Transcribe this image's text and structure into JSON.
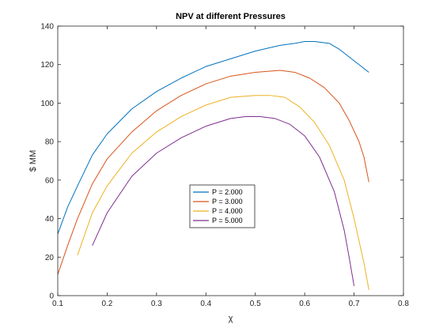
{
  "chart_data": {
    "type": "line",
    "title": "NPV at different Pressures",
    "xlabel": "χ",
    "ylabel": "$ MM",
    "xlim": [
      0.1,
      0.8
    ],
    "ylim": [
      0,
      140
    ],
    "xticks": [
      0.1,
      0.2,
      0.3,
      0.4,
      0.5,
      0.6,
      0.7,
      0.8
    ],
    "xtick_labels": [
      "0.1",
      "0.2",
      "0.3",
      "0.4",
      "0.5",
      "0.6",
      "0.7",
      "0.8"
    ],
    "yticks": [
      0,
      20,
      40,
      60,
      80,
      100,
      120,
      140
    ],
    "ytick_labels": [
      "0",
      "20",
      "40",
      "60",
      "80",
      "100",
      "120",
      "140"
    ],
    "grid": false,
    "legend_position": "center",
    "series": [
      {
        "name": "P = 2.000",
        "color": "#0072BD",
        "x": [
          0.1,
          0.12,
          0.14,
          0.17,
          0.2,
          0.25,
          0.3,
          0.35,
          0.4,
          0.45,
          0.5,
          0.55,
          0.58,
          0.6,
          0.62,
          0.65,
          0.67,
          0.69,
          0.71,
          0.73
        ],
        "y": [
          32,
          46,
          57,
          73,
          84,
          97,
          106,
          113,
          119,
          123,
          127,
          130,
          131,
          132,
          132,
          131,
          128,
          124,
          120,
          116
        ]
      },
      {
        "name": "P = 3.000",
        "color": "#D95319",
        "x": [
          0.1,
          0.12,
          0.14,
          0.17,
          0.2,
          0.25,
          0.3,
          0.35,
          0.4,
          0.45,
          0.5,
          0.55,
          0.58,
          0.61,
          0.64,
          0.67,
          0.69,
          0.71,
          0.72,
          0.73
        ],
        "y": [
          11,
          26,
          40,
          58,
          71,
          85,
          96,
          104,
          110,
          114,
          116,
          117,
          116,
          113,
          108,
          100,
          91,
          80,
          72,
          59
        ]
      },
      {
        "name": "P = 4.000",
        "color": "#EDB120",
        "x": [
          0.14,
          0.17,
          0.2,
          0.25,
          0.3,
          0.35,
          0.4,
          0.45,
          0.5,
          0.53,
          0.56,
          0.59,
          0.62,
          0.65,
          0.68,
          0.7,
          0.72,
          0.73
        ],
        "y": [
          21,
          43,
          57,
          74,
          85,
          93,
          99,
          103,
          104,
          104,
          103,
          98,
          90,
          78,
          60,
          40,
          17,
          3
        ]
      },
      {
        "name": "P = 5.000",
        "color": "#7E2F8E",
        "x": [
          0.17,
          0.2,
          0.25,
          0.3,
          0.35,
          0.4,
          0.45,
          0.48,
          0.51,
          0.54,
          0.57,
          0.6,
          0.63,
          0.66,
          0.68,
          0.69,
          0.7
        ],
        "y": [
          26,
          43,
          62,
          74,
          82,
          88,
          92,
          93,
          93,
          92,
          89,
          83,
          72,
          54,
          34,
          20,
          5
        ]
      }
    ]
  }
}
